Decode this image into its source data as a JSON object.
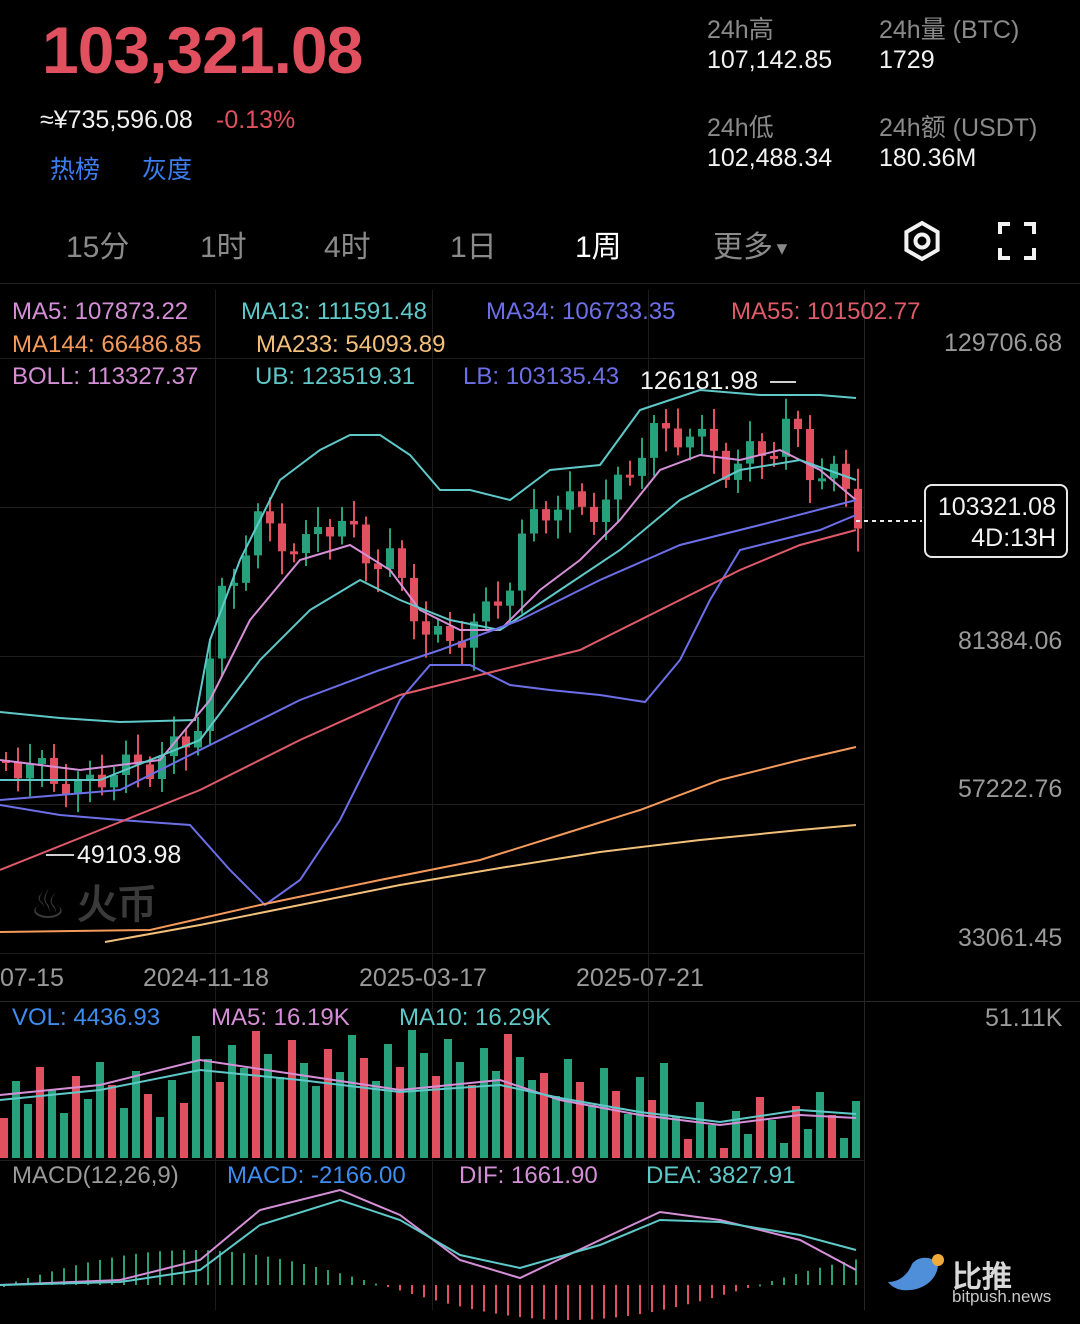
{
  "header": {
    "price": "103,321.08",
    "cny_price": "≈¥735,596.08",
    "change_pct": "-0.13%",
    "tags": [
      "热榜",
      "灰度"
    ]
  },
  "stats": {
    "high_label": "24h高",
    "high_value": "107,142.85",
    "vol_label": "24h量 (BTC)",
    "vol_value": "1729",
    "low_label": "24h低",
    "low_value": "102,488.34",
    "amount_label": "24h额 (USDT)",
    "amount_value": "180.36M"
  },
  "tabs": {
    "items": [
      "15分",
      "1时",
      "4时",
      "1日",
      "1周"
    ],
    "active": "1周",
    "more": "更多"
  },
  "indicators": {
    "ma5": "MA5: 107873.22",
    "ma13": "MA13: 111591.48",
    "ma34": "MA34: 106733.35",
    "ma55": "MA55: 101502.77",
    "ma144": "MA144: 66486.85",
    "ma233": "MA233: 54093.89",
    "boll": "BOLL: 113327.37",
    "ub": "UB: 123519.31",
    "lb": "LB: 103135.43"
  },
  "price_axis": [
    "129706.68",
    "81384.06",
    "57222.76",
    "33061.45"
  ],
  "markers": {
    "high": "126181.98",
    "low": "49103.98"
  },
  "current_tip": {
    "price": "103321.08",
    "countdown": "4D:13H"
  },
  "date_axis": [
    "07-15",
    "2024-11-18",
    "2025-03-17",
    "2025-07-21"
  ],
  "volume": {
    "vol": "VOL: 4436.93",
    "ma5": "MA5: 16.19K",
    "ma10": "MA10: 16.29K",
    "max": "51.11K"
  },
  "macd": {
    "title": "MACD(12,26,9)",
    "macd": "MACD: -2166.00",
    "dif": "DIF: 1661.90",
    "dea": "DEA: 3827.91"
  },
  "watermarks": {
    "exchange": "火币",
    "site": "比推",
    "url": "bitpush.news"
  },
  "colors": {
    "up": "#26a17b",
    "down": "#e0505e",
    "ma5": "#d58fd7",
    "ma13": "#5fc9c9",
    "ma34": "#6d6fe8",
    "ma55": "#e05a6a",
    "ma144": "#f59a5a",
    "ma233": "#f2c07a"
  }
}
